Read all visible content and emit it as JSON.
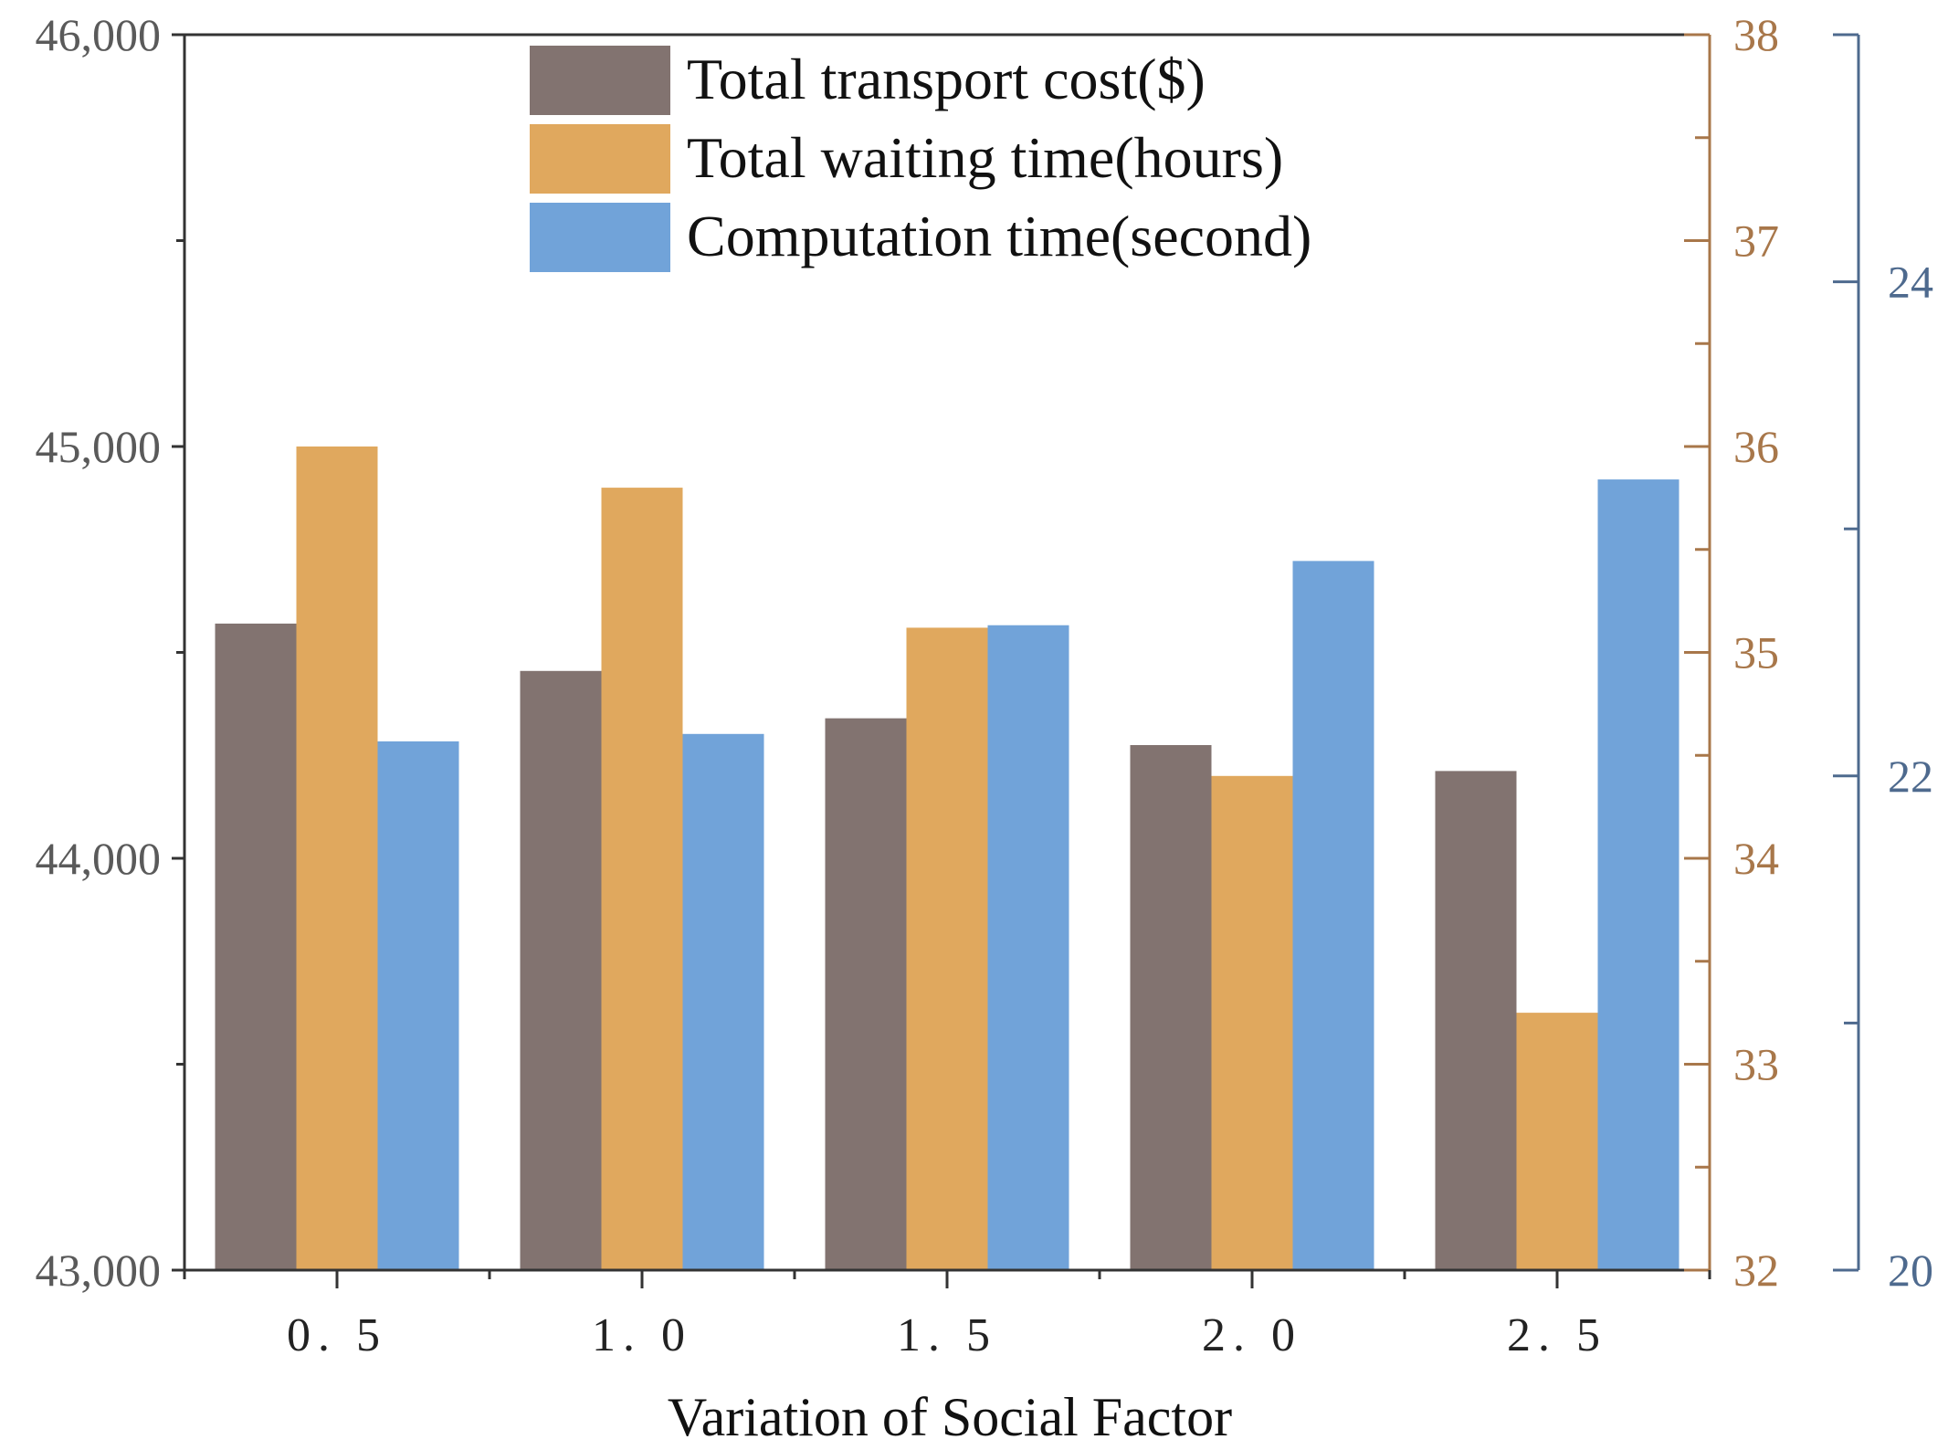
{
  "chart_data": {
    "type": "bar",
    "categories": [
      "0. 5",
      "1. 0",
      "1. 5",
      "2. 0",
      "2. 5"
    ],
    "series": [
      {
        "name": "Total transport cost($)",
        "axis": "left",
        "color": "#827370",
        "values": [
          44570,
          44455,
          44340,
          44275,
          44212
        ]
      },
      {
        "name": "Total waiting time(hours)",
        "axis": "right1",
        "color": "#E0A85E",
        "values": [
          36.0,
          35.8,
          35.12,
          34.4,
          33.25
        ]
      },
      {
        "name": "Computation time(second)",
        "axis": "right2",
        "color": "#71A3D9",
        "values": [
          22.14,
          22.17,
          22.61,
          22.87,
          23.2
        ]
      }
    ],
    "axes": {
      "left": {
        "ylim": [
          43000,
          46000
        ],
        "ticks": [
          43000,
          44000,
          45000,
          46000
        ],
        "tick_labels": [
          "43,000",
          "44,000",
          "45,000",
          "46,000"
        ],
        "color": "#333333"
      },
      "right1": {
        "ylim": [
          32,
          38
        ],
        "ticks": [
          32,
          33,
          34,
          35,
          36,
          37,
          38
        ],
        "tick_labels": [
          "32",
          "33",
          "34",
          "35",
          "36",
          "37",
          "38"
        ],
        "color": "#A8774A"
      },
      "right2": {
        "ylim": [
          20,
          25
        ],
        "ticks": [
          20,
          22,
          24
        ],
        "tick_labels": [
          "20",
          "22",
          "24"
        ],
        "color": "#4E6A8E"
      }
    },
    "xlabel": "Variation of Social Factor",
    "legend_position": "top-center",
    "grid": false
  }
}
